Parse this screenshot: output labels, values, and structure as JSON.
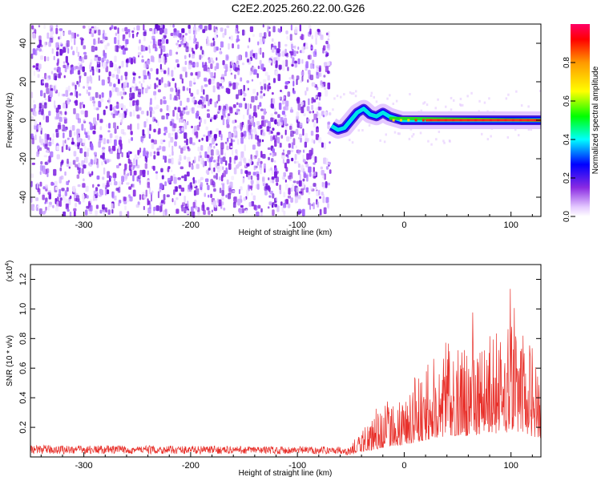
{
  "title": "C2E2.2025.260.22.00.G26",
  "chart_data": [
    {
      "type": "heatmap",
      "xlabel": "Height of straight line (km)",
      "ylabel": "Frequency (Hz)",
      "xlim": [
        -350,
        128
      ],
      "ylim": [
        -50,
        50
      ],
      "xticks": [
        -300,
        -200,
        -100,
        0,
        100
      ],
      "yticks": [
        -40,
        -20,
        0,
        20,
        40
      ],
      "noise_region": [
        -350,
        -68
      ],
      "signal": {
        "x": [
          -68,
          -62,
          -56,
          -50,
          -44,
          -38,
          -32,
          -26,
          -20,
          -14,
          -8,
          -2,
          0,
          20,
          60,
          100,
          128
        ],
        "freq": [
          -3,
          -5,
          -4,
          0,
          4,
          6,
          3,
          2,
          4,
          2,
          1,
          0,
          0,
          0,
          0,
          0,
          0
        ]
      },
      "colorbar": {
        "label": "Normalized spectral amplitude",
        "range": [
          0.0,
          1.0
        ],
        "ticks": [
          0.0,
          0.2,
          0.4,
          0.6,
          0.8
        ]
      }
    },
    {
      "type": "line",
      "xlabel": "Height of straight line (km)",
      "ylabel": "SNR (10 * v/v)",
      "scale_label": "(x10",
      "scale_exp": "4",
      "xlim": [
        -350,
        128
      ],
      "ylim": [
        0,
        1.3
      ],
      "xticks": [
        -300,
        -200,
        -100,
        0,
        100
      ],
      "yticks": [
        0.2,
        0.4,
        0.6,
        0.8,
        1.0,
        1.2
      ],
      "series": [
        {
          "color": "#e8302a",
          "envelope_x": [
            -350,
            -60,
            -50,
            -40,
            -20,
            0,
            20,
            40,
            60,
            80,
            100,
            128
          ],
          "envelope_y": [
            0.08,
            0.07,
            0.1,
            0.22,
            0.4,
            0.55,
            0.75,
            0.95,
            0.95,
            1.05,
            1.1,
            0.85
          ]
        }
      ]
    }
  ]
}
